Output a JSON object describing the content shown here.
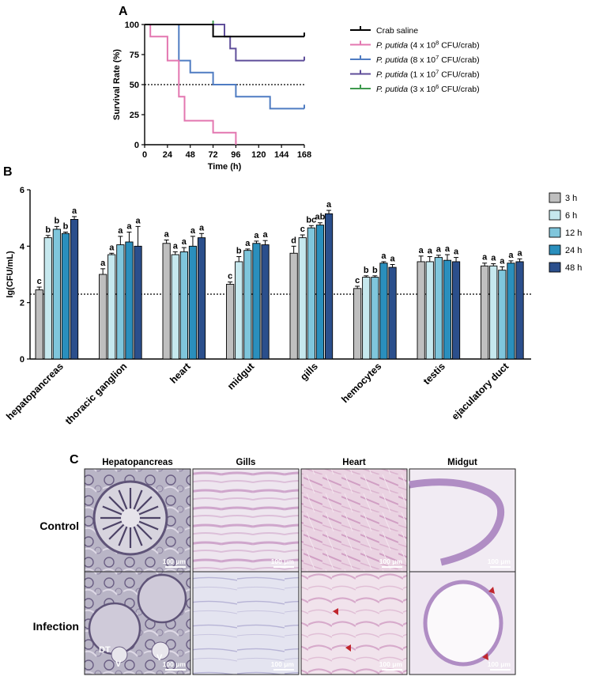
{
  "panel_labels": {
    "a": "A",
    "b": "B",
    "c": "C"
  },
  "colors": {
    "survival": [
      "#000000",
      "#e377b0",
      "#4f7cc2",
      "#5f4e9a",
      "#3e9a4e"
    ],
    "bars": [
      "#bfbfbf",
      "#c6e8ee",
      "#7fc6dc",
      "#2a8fbd",
      "#2b4f8c"
    ]
  },
  "chart_data": [
    {
      "type": "line",
      "step": true,
      "xlabel": "Time (h)",
      "ylabel": "Survival Rate (%)",
      "xlim": [
        0,
        168
      ],
      "ylim": [
        0,
        100
      ],
      "x_ticks": [
        "0",
        "24",
        "48",
        "72",
        "96",
        "120",
        "144",
        "168"
      ],
      "y_ticks": [
        "0",
        "25",
        "50",
        "75",
        "100"
      ],
      "reference_line": 50,
      "legend_position": "right",
      "series": [
        {
          "name": "Crab saline",
          "name_italic": "",
          "name_rest": "Crab saline",
          "points": [
            [
              0,
              100
            ],
            [
              72,
              100
            ],
            [
              72,
              90
            ],
            [
              168,
              90
            ]
          ]
        },
        {
          "name": "P. putida (4 x 10^8 CFU/crab)",
          "name_italic": "P. putida",
          "name_rest": " (4 x 10",
          "name_exp": "8",
          "name_end": " CFU/crab)",
          "points": [
            [
              0,
              100
            ],
            [
              6,
              100
            ],
            [
              6,
              90
            ],
            [
              24,
              90
            ],
            [
              24,
              70
            ],
            [
              36,
              70
            ],
            [
              36,
              40
            ],
            [
              42,
              40
            ],
            [
              42,
              20
            ],
            [
              72,
              20
            ],
            [
              72,
              10
            ],
            [
              96,
              10
            ],
            [
              96,
              0
            ]
          ]
        },
        {
          "name": "P. putida (8 x 10^7 CFU/crab)",
          "name_italic": "P. putida",
          "name_rest": " (8 x 10",
          "name_exp": "7",
          "name_end": " CFU/crab)",
          "points": [
            [
              0,
              100
            ],
            [
              36,
              100
            ],
            [
              36,
              70
            ],
            [
              48,
              70
            ],
            [
              48,
              60
            ],
            [
              72,
              60
            ],
            [
              72,
              50
            ],
            [
              96,
              50
            ],
            [
              96,
              40
            ],
            [
              132,
              40
            ],
            [
              132,
              30
            ],
            [
              168,
              30
            ]
          ]
        },
        {
          "name": "P. putida (1 x 10^7 CFU/crab)",
          "name_italic": "P. putida",
          "name_rest": " (1 x 10",
          "name_exp": "7",
          "name_end": " CFU/crab)",
          "points": [
            [
              0,
              100
            ],
            [
              84,
              100
            ],
            [
              84,
              90
            ],
            [
              84,
              90
            ],
            [
              90,
              90
            ],
            [
              90,
              80
            ],
            [
              96,
              80
            ],
            [
              96,
              70
            ],
            [
              168,
              70
            ]
          ]
        },
        {
          "name": "P. putida (3 x 10^6 CFU/crab)",
          "name_italic": "P. putida",
          "name_rest": " (3 x 10",
          "name_exp": "6",
          "name_end": " CFU/crab)",
          "points": [
            [
              48,
              100
            ],
            [
              72,
              100
            ]
          ]
        }
      ]
    },
    {
      "type": "bar",
      "ylabel": "lg(CFU/mL)",
      "ylim": [
        0,
        6
      ],
      "y_ticks": [
        "0",
        "2",
        "4",
        "6"
      ],
      "reference_line": 2.3,
      "legend_position": "right",
      "categories": [
        "hepatopancreas",
        "thoracic ganglion",
        "heart",
        "midgut",
        "gills",
        "hemocytes",
        "testis",
        "ejaculatory duct"
      ],
      "series": [
        {
          "name": "3 h",
          "values": [
            2.45,
            3.0,
            4.1,
            2.65,
            3.75,
            2.5,
            3.45,
            3.3
          ],
          "errors": [
            0.1,
            0.2,
            0.12,
            0.08,
            0.25,
            0.08,
            0.2,
            0.1
          ],
          "letters": [
            "c",
            "a",
            "a",
            "c",
            "d",
            "c",
            "a",
            "a"
          ]
        },
        {
          "name": "6 h",
          "values": [
            4.3,
            3.7,
            3.7,
            3.45,
            4.3,
            2.9,
            3.45,
            3.3
          ],
          "errors": [
            0.08,
            0.05,
            0.1,
            0.18,
            0.1,
            0.05,
            0.18,
            0.08
          ],
          "letters": [
            "b",
            "a",
            "a",
            "b",
            "c",
            "b",
            "a",
            "a"
          ]
        },
        {
          "name": "12 h",
          "values": [
            4.6,
            4.05,
            3.8,
            3.85,
            4.65,
            2.9,
            3.6,
            3.15
          ],
          "errors": [
            0.1,
            0.3,
            0.15,
            0.05,
            0.08,
            0.05,
            0.08,
            0.12
          ],
          "letters": [
            "b",
            "a",
            "a",
            "a",
            "bc",
            "b",
            "a",
            "a"
          ]
        },
        {
          "name": "24 h",
          "values": [
            4.45,
            4.15,
            4.0,
            4.1,
            4.75,
            3.4,
            3.5,
            3.4
          ],
          "errors": [
            0.05,
            0.35,
            0.35,
            0.08,
            0.08,
            0.05,
            0.2,
            0.08
          ],
          "letters": [
            "b",
            "a",
            "a",
            "a",
            "ab",
            "a",
            "a",
            "a"
          ]
        },
        {
          "name": "48 h",
          "values": [
            4.95,
            4.0,
            4.3,
            4.05,
            5.15,
            3.25,
            3.45,
            3.45
          ],
          "errors": [
            0.1,
            0.7,
            0.15,
            0.15,
            0.12,
            0.1,
            0.15,
            0.1
          ],
          "letters": [
            "a",
            "a",
            "a",
            "a",
            "a",
            "a",
            "a",
            "a"
          ]
        }
      ]
    }
  ],
  "histology": {
    "columns": [
      "Hepatopancreas",
      "Gills",
      "Heart",
      "Midgut"
    ],
    "rows": [
      "Control",
      "Infection"
    ],
    "scale_bar": "100 μm",
    "annotations": {
      "dt": "DT",
      "v": "V"
    }
  }
}
